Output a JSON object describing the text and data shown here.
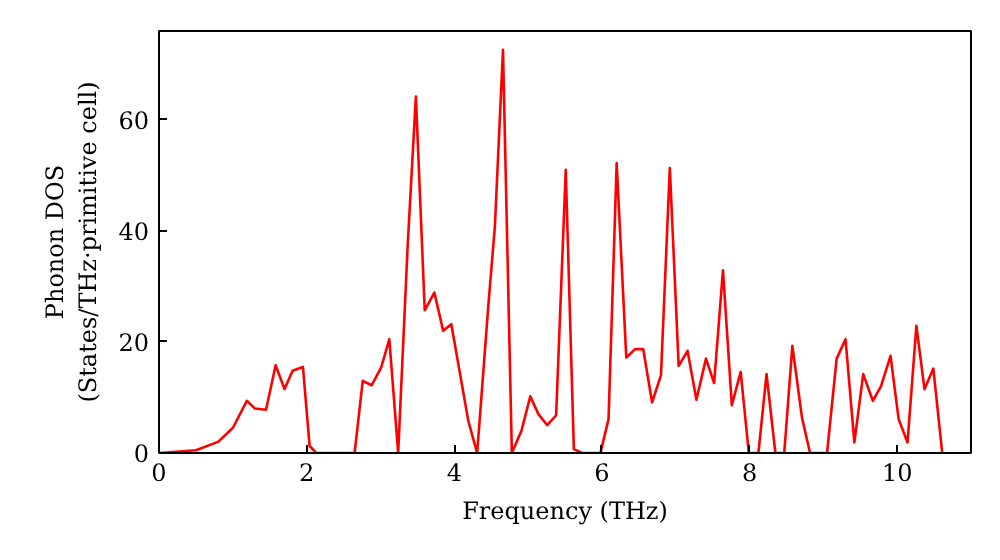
{
  "chart_data": {
    "type": "line",
    "xlabel": "Frequency (THz)",
    "ylabel": "Phonon DOS\n(States/THz·primitive cell)",
    "xlim": [
      0,
      11
    ],
    "ylim": [
      0,
      76
    ],
    "xticks": [
      0,
      2,
      4,
      6,
      8,
      10
    ],
    "yticks": [
      0,
      20,
      40,
      60
    ],
    "grid": false,
    "marker": "none",
    "line_style": "solid",
    "series": [
      {
        "color": "#ff0000",
        "x": [
          0,
          0.5,
          0.8,
          1.0,
          1.19,
          1.3,
          1.45,
          1.58,
          1.7,
          1.81,
          1.95,
          2.04,
          2.13,
          2.65,
          2.76,
          2.88,
          3.01,
          3.12,
          3.24,
          3.37,
          3.48,
          3.6,
          3.73,
          3.85,
          3.96,
          4.19,
          4.31,
          4.46,
          4.55,
          4.66,
          4.78,
          4.91,
          5.03,
          5.14,
          5.26,
          5.38,
          5.51,
          5.62,
          5.73,
          5.98,
          6.09,
          6.2,
          6.33,
          6.45,
          6.56,
          6.68,
          6.8,
          6.92,
          7.04,
          7.16,
          7.28,
          7.41,
          7.52,
          7.64,
          7.76,
          7.88,
          7.99,
          8.12,
          8.23,
          8.35,
          8.47,
          8.58,
          8.71,
          8.82,
          9.05,
          9.18,
          9.3,
          9.42,
          9.54,
          9.67,
          9.78,
          9.91,
          10.02,
          10.14,
          10.26,
          10.37,
          10.49,
          10.61
        ],
        "values": [
          0,
          0.5,
          2,
          4.5,
          9.4,
          8,
          7.8,
          15.8,
          11.5,
          14.8,
          15.5,
          1.3,
          0,
          0,
          13,
          12.2,
          15.4,
          20.5,
          0,
          37.7,
          64.2,
          25.7,
          28.9,
          22,
          23.2,
          5.8,
          0,
          26.3,
          40.8,
          72.6,
          0,
          4,
          10.2,
          7,
          5,
          6.8,
          51,
          0.7,
          0,
          0,
          6.1,
          52.2,
          17.2,
          18.7,
          18.7,
          9.1,
          14,
          51.3,
          15.7,
          18.4,
          9.6,
          17,
          12.6,
          32.9,
          8.6,
          14.6,
          0,
          0,
          14.2,
          0,
          0,
          19.3,
          6.4,
          0,
          0,
          17,
          20.5,
          1.9,
          14.2,
          9.4,
          12,
          17.5,
          6.1,
          1.9,
          22.9,
          11.5,
          15.2,
          0
        ]
      }
    ]
  }
}
